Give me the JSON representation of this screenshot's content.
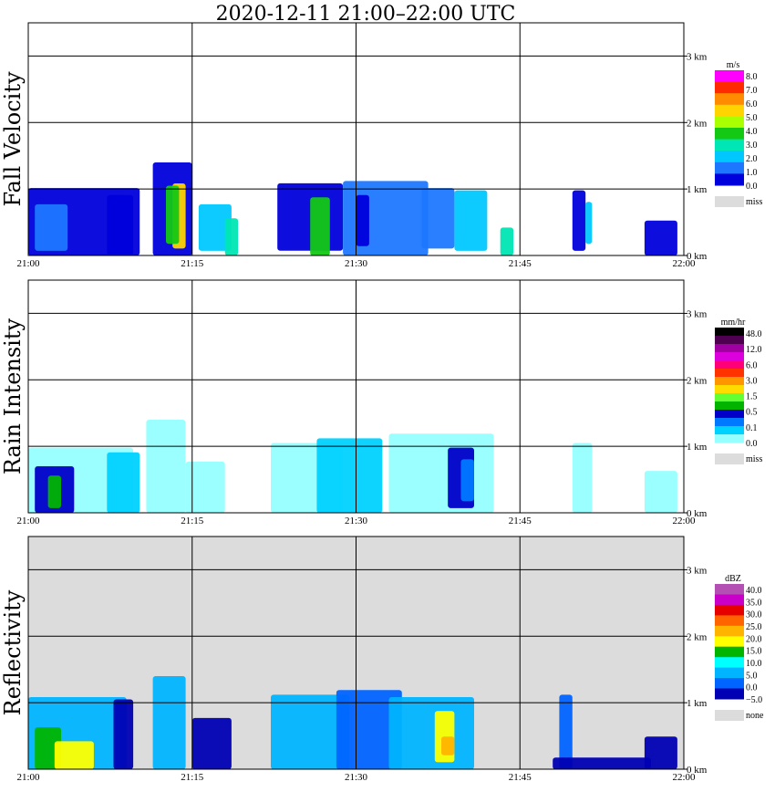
{
  "title": "2020-12-11   21:00–22:00 UTC",
  "x_ticks": [
    "21:00",
    "21:15",
    "21:30",
    "21:45",
    "22:00"
  ],
  "y_ticks": [
    "0 km",
    "1 km",
    "2 km",
    "3 km"
  ],
  "colors": {
    "missing": "#dcdcdc",
    "frame": "#000000",
    "low_blue": "#0a14d2",
    "light_cyan": "#96ffff"
  },
  "chart_data": [
    {
      "type": "heatmap",
      "title": "Fall Velocity",
      "x_range": [
        "21:00",
        "22:00"
      ],
      "y_range_km": [
        0,
        3.5
      ],
      "colorbar": {
        "unit": "m/s",
        "labels": [
          "8.0",
          "7.0",
          "6.0",
          "5.0",
          "4.0",
          "3.0",
          "2.0",
          "1.0",
          "0.0"
        ],
        "colors": [
          "#ff00ff",
          "#ff2a00",
          "#ff8c00",
          "#ffd400",
          "#aaff00",
          "#14c814",
          "#00e6b4",
          "#00c8ff",
          "#1e78ff",
          "#0000dc"
        ],
        "missing_label": "miss"
      }
    },
    {
      "type": "heatmap",
      "title": "Rain Intensity",
      "x_range": [
        "21:00",
        "22:00"
      ],
      "y_range_km": [
        0,
        3.5
      ],
      "colorbar": {
        "unit": "mm/hr",
        "labels": [
          "48.0",
          "12.0",
          "6.0",
          "3.0",
          "1.5",
          "0.5",
          "0.1",
          "0.0"
        ],
        "colors": [
          "#000000",
          "#500050",
          "#a000a0",
          "#dc00dc",
          "#ff0078",
          "#ff3200",
          "#ff9600",
          "#ffdc00",
          "#64ff32",
          "#00b400",
          "#0000c8",
          "#0078ff",
          "#00d2ff",
          "#96ffff"
        ],
        "missing_label": "miss"
      }
    },
    {
      "type": "heatmap",
      "title": "Reflectivity",
      "x_range": [
        "21:00",
        "22:00"
      ],
      "y_range_km": [
        0,
        3.5
      ],
      "colorbar": {
        "unit": "dBZ",
        "labels": [
          "40.0",
          "35.0",
          "30.0",
          "25.0",
          "20.0",
          "15.0",
          "10.0",
          "5.0",
          "0.0",
          "−5.0"
        ],
        "colors": [
          "#b450b4",
          "#c800c8",
          "#e60000",
          "#ff6400",
          "#ffb400",
          "#ffff00",
          "#00b400",
          "#00ffff",
          "#00b4ff",
          "#0064ff",
          "#0000b4"
        ],
        "missing_label": "none"
      }
    }
  ]
}
